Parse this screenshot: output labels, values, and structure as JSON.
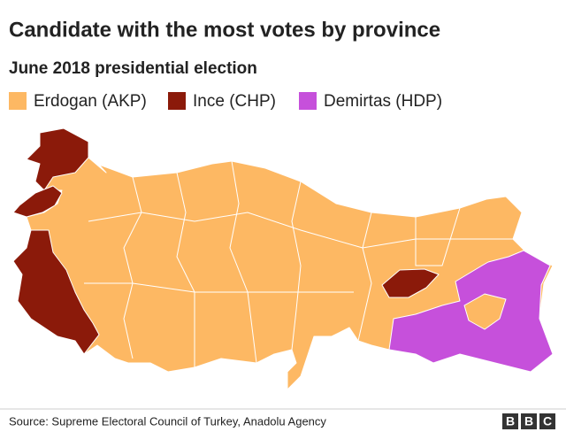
{
  "title": "Candidate with the most votes by province",
  "subtitle": "June 2018 presidential election",
  "legend": [
    {
      "label": "Erdogan (AKP)",
      "color": "#fdb863"
    },
    {
      "label": "Ince (CHP)",
      "color": "#8b1a0a"
    },
    {
      "label": "Demirtas (HDP)",
      "color": "#c650db"
    }
  ],
  "source": "Source: Supreme Electoral Council of Turkey, Anadolu Agency",
  "logo": [
    "B",
    "B",
    "C"
  ]
}
